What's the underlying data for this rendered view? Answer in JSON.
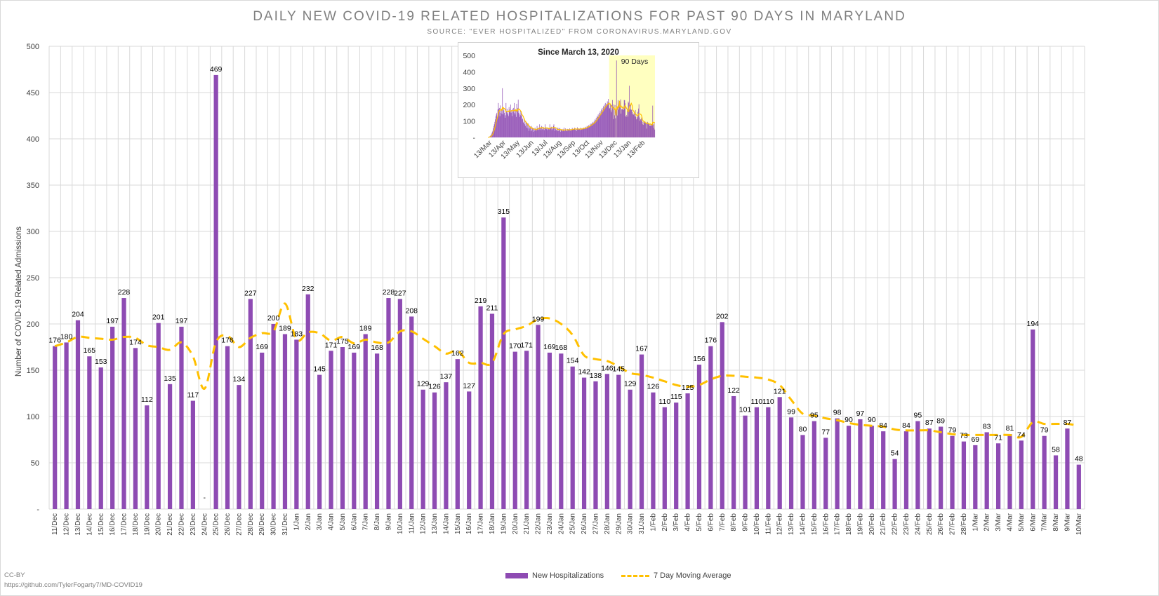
{
  "chart_data": [
    {
      "type": "bar",
      "title": "DAILY NEW COVID-19 RELATED HOSPITALIZATIONS FOR PAST 90 DAYS IN MARYLAND",
      "subtitle": "SOURCE: \"EVER HOSPITALIZED\" FROM CORONAVIRUS.MARYLAND.GOV",
      "xlabel": "",
      "ylabel": "Number of COVID-19 Related Admissions",
      "ylim": [
        0,
        500
      ],
      "yticks": [
        0,
        50,
        100,
        150,
        200,
        250,
        300,
        350,
        400,
        450,
        500
      ],
      "ytick_labels": [
        "-",
        "50",
        "100",
        "150",
        "200",
        "250",
        "300",
        "350",
        "400",
        "450",
        "500"
      ],
      "grid": true,
      "legend_position": "bottom",
      "categories": [
        "11/Dec",
        "12/Dec",
        "13/Dec",
        "14/Dec",
        "15/Dec",
        "16/Dec",
        "17/Dec",
        "18/Dec",
        "19/Dec",
        "20/Dec",
        "21/Dec",
        "22/Dec",
        "23/Dec",
        "24/Dec",
        "25/Dec",
        "26/Dec",
        "27/Dec",
        "28/Dec",
        "29/Dec",
        "30/Dec",
        "31/Dec",
        "1/Jan",
        "2/Jan",
        "3/Jan",
        "4/Jan",
        "5/Jan",
        "6/Jan",
        "7/Jan",
        "8/Jan",
        "9/Jan",
        "10/Jan",
        "11/Jan",
        "12/Jan",
        "13/Jan",
        "14/Jan",
        "15/Jan",
        "16/Jan",
        "17/Jan",
        "18/Jan",
        "19/Jan",
        "20/Jan",
        "21/Jan",
        "22/Jan",
        "23/Jan",
        "24/Jan",
        "25/Jan",
        "26/Jan",
        "27/Jan",
        "28/Jan",
        "29/Jan",
        "30/Jan",
        "31/Jan",
        "1/Feb",
        "2/Feb",
        "3/Feb",
        "4/Feb",
        "5/Feb",
        "6/Feb",
        "7/Feb",
        "8/Feb",
        "9/Feb",
        "10/Feb",
        "11/Feb",
        "12/Feb",
        "13/Feb",
        "14/Feb",
        "15/Feb",
        "16/Feb",
        "17/Feb",
        "18/Feb",
        "19/Feb",
        "20/Feb",
        "21/Feb",
        "22/Feb",
        "23/Feb",
        "24/Feb",
        "25/Feb",
        "26/Feb",
        "27/Feb",
        "28/Feb",
        "1/Mar",
        "2/Mar",
        "3/Mar",
        "4/Mar",
        "5/Mar",
        "6/Mar",
        "7/Mar",
        "8/Mar",
        "9/Mar",
        "10/Mar"
      ],
      "series": [
        {
          "name": "New Hospitalizations",
          "color": "#8e4bb3",
          "values": [
            176,
            180,
            204,
            165,
            153,
            197,
            228,
            174,
            112,
            201,
            135,
            197,
            117,
            0,
            469,
            176,
            134,
            227,
            169,
            200,
            189,
            183,
            232,
            145,
            171,
            175,
            169,
            189,
            168,
            228,
            227,
            208,
            129,
            126,
            137,
            162,
            127,
            219,
            211,
            315,
            170,
            171,
            199,
            169,
            168,
            154,
            142,
            138,
            146,
            145,
            129,
            167,
            126,
            110,
            115,
            125,
            156,
            176,
            202,
            122,
            101,
            110,
            110,
            121,
            99,
            80,
            95,
            77,
            98,
            90,
            97,
            90,
            84,
            54,
            84,
            95,
            87,
            89,
            79,
            73,
            69,
            83,
            71,
            81,
            74,
            194,
            79,
            58,
            87,
            48
          ],
          "data_labels": [
            "176",
            "180",
            "204",
            "165",
            "153",
            "197",
            "228",
            "174",
            "112",
            "201",
            "135",
            "197",
            "117",
            "-",
            "469",
            "176",
            "134",
            "227",
            "169",
            "200",
            "189",
            "183",
            "232",
            "145",
            "171",
            "175",
            "169",
            "189",
            "168",
            "228",
            "227",
            "208",
            "129",
            "126",
            "137",
            "162",
            "127",
            "219",
            "211",
            "315",
            "170",
            "171",
            "199",
            "169",
            "168",
            "154",
            "142",
            "138",
            "146",
            "145",
            "129",
            "167",
            "126",
            "110",
            "115",
            "125",
            "156",
            "176",
            "202",
            "122",
            "101",
            "110",
            "110",
            "121",
            "99",
            "80",
            "95",
            "77",
            "98",
            "90",
            "97",
            "90",
            "84",
            "54",
            "84",
            "95",
            "87",
            "89",
            "79",
            "73",
            "69",
            "83",
            "71",
            "81",
            "74",
            "194",
            "79",
            "58",
            "87",
            "48"
          ]
        },
        {
          "name": "7 Day Moving Average",
          "color": "#ffc000",
          "style": "dashed-line",
          "values": [
            176,
            180,
            186,
            185,
            184,
            183,
            186,
            185,
            177,
            175,
            172,
            180,
            165,
            130,
            180,
            187,
            175,
            185,
            190,
            192,
            222,
            183,
            191,
            190,
            182,
            186,
            179,
            183,
            180,
            180,
            192,
            192,
            184,
            176,
            168,
            171,
            158,
            158,
            158,
            189,
            194,
            198,
            205,
            206,
            200,
            188,
            166,
            162,
            160,
            154,
            147,
            145,
            142,
            138,
            134,
            132,
            134,
            140,
            144,
            144,
            143,
            142,
            140,
            134,
            118,
            103,
            101,
            98,
            96,
            93,
            91,
            90,
            89,
            86,
            85,
            85,
            85,
            83,
            81,
            80,
            80,
            80,
            80,
            80,
            78,
            94,
            92,
            92,
            92,
            90
          ]
        }
      ]
    },
    {
      "type": "bar",
      "title": "Since March 13, 2020",
      "ylim": [
        0,
        500
      ],
      "yticks": [
        0,
        100,
        200,
        300,
        400,
        500
      ],
      "ytick_labels": [
        "-",
        "100",
        "200",
        "300",
        "400",
        "500"
      ],
      "x_tick_labels": [
        "13/Mar",
        "13/Apr",
        "13/May",
        "13/Jun",
        "13/Jul",
        "13/Aug",
        "13/Sep",
        "13/Oct",
        "13/Nov",
        "13/Dec",
        "13/Jan",
        "13/Feb"
      ],
      "highlight_label": "90 Days",
      "highlight_color": "#ffffc0",
      "series": [
        {
          "name": "New Hospitalizations",
          "color": "#8e4bb3",
          "values": [
            0,
            2,
            4,
            6,
            9,
            12,
            17,
            24,
            32,
            40,
            55,
            68,
            80,
            95,
            110,
            128,
            140,
            150,
            120,
            170,
            210,
            175,
            180,
            130,
            195,
            150,
            165,
            145,
            300,
            140,
            175,
            165,
            150,
            120,
            135,
            210,
            160,
            175,
            150,
            140,
            130,
            185,
            170,
            155,
            200,
            150,
            160,
            130,
            175,
            155,
            180,
            210,
            150,
            140,
            170,
            125,
            205,
            160,
            180,
            230,
            150,
            140,
            125,
            165,
            135,
            150,
            130,
            110,
            115,
            90,
            95,
            110,
            80,
            70,
            100,
            90,
            60,
            80,
            55,
            85,
            40,
            70,
            55,
            65,
            38,
            70,
            45,
            60,
            50,
            35,
            55,
            42,
            60,
            48,
            40,
            50,
            70,
            55,
            45,
            60,
            48,
            80,
            60,
            55,
            45,
            70,
            50,
            65,
            48,
            62,
            45,
            58,
            80,
            55,
            50,
            58,
            45,
            60,
            52,
            50,
            48,
            80,
            60,
            55,
            65,
            45,
            60,
            52,
            70,
            80,
            55,
            40,
            58,
            50,
            45,
            50,
            38,
            60,
            40,
            55,
            42,
            58,
            35,
            50,
            42,
            45,
            38,
            52,
            40,
            60,
            38,
            45,
            55,
            40,
            48,
            38,
            52,
            50,
            45,
            42,
            55,
            48,
            40,
            50,
            45,
            58,
            52,
            48,
            50,
            55,
            60,
            45,
            50,
            52,
            40,
            62,
            50,
            55,
            48,
            52,
            50,
            45,
            60,
            48,
            55,
            50,
            58,
            55,
            60,
            52,
            58,
            65,
            60,
            55,
            70,
            62,
            68,
            75,
            65,
            72,
            80,
            70,
            85,
            80,
            90,
            75,
            95,
            88,
            100,
            90,
            110,
            105,
            120,
            100,
            130,
            125,
            140,
            120,
            150,
            135,
            160,
            145,
            170,
            155,
            180,
            160,
            190,
            175,
            200,
            185,
            210,
            190,
            205,
            195,
            220,
            200,
            235,
            215,
            176,
            180,
            204,
            165,
            153,
            197,
            228,
            174,
            112,
            201,
            135,
            197,
            117,
            0,
            469,
            176,
            134,
            227,
            169,
            200,
            189,
            183,
            232,
            145,
            171,
            175,
            169,
            189,
            168,
            228,
            227,
            208,
            129,
            126,
            137,
            162,
            127,
            219,
            211,
            315,
            170,
            171,
            199,
            169,
            168,
            154,
            142,
            138,
            146,
            145,
            129,
            167,
            126,
            110,
            115,
            125,
            156,
            176,
            202,
            122,
            101,
            110,
            110,
            121,
            99,
            80,
            95,
            77,
            98,
            90,
            97,
            90,
            84,
            54,
            84,
            95,
            87,
            89,
            79,
            73,
            69,
            83,
            71,
            81,
            74,
            194,
            79,
            58,
            87,
            48
          ]
        },
        {
          "name": "7 Day Moving Average",
          "color": "#ffc000"
        }
      ]
    }
  ],
  "legend": {
    "bars_label": "New Hospitalizations",
    "line_label": "7 Day Moving Average"
  },
  "footer": {
    "license": "CC-BY",
    "repo": "https://github.com/TylerFogarty7/MD-COVID19"
  },
  "colors": {
    "bar": "#8e4bb3",
    "moving_average": "#ffc000",
    "highlight": "#ffffc0",
    "grid": "#d9d9d9",
    "text": "#595959"
  }
}
